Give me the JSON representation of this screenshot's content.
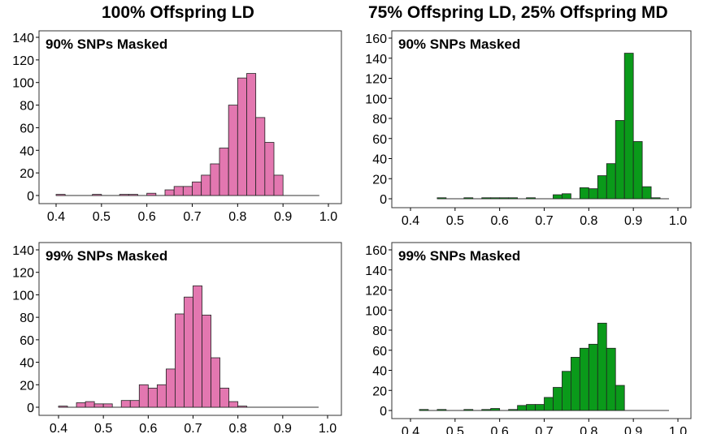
{
  "titles": {
    "left": "100% Offspring LD",
    "right": "75% Offspring LD, 25% Offspring MD"
  },
  "colors": {
    "pink_fill": "#e377b0",
    "green_fill": "#0a9a1a",
    "bar_stroke": "#222222",
    "axis": "#000000"
  },
  "chart_data": [
    {
      "type": "bar",
      "label": "90% SNPs Masked",
      "color": "pink",
      "xlim": [
        0.4,
        1.0
      ],
      "ylim": [
        0,
        140
      ],
      "x_ticks": [
        "0.4",
        "0.5",
        "0.6",
        "0.7",
        "0.8",
        "0.9",
        "1.0"
      ],
      "y_ticks": [
        "0",
        "20",
        "40",
        "60",
        "80",
        "100",
        "120",
        "140"
      ],
      "bin_width": 0.02,
      "bin_starts": [
        0.4,
        0.48,
        0.54,
        0.56,
        0.6,
        0.64,
        0.66,
        0.68,
        0.7,
        0.72,
        0.74,
        0.76,
        0.78,
        0.8,
        0.82,
        0.84,
        0.86,
        0.88
      ],
      "counts": [
        1,
        1,
        1,
        1,
        2,
        5,
        8,
        8,
        12,
        18,
        28,
        42,
        80,
        104,
        108,
        69,
        47,
        18
      ],
      "baseline_end": 0.98
    },
    {
      "type": "bar",
      "label": "90% SNPs Masked",
      "color": "green",
      "xlim": [
        0.4,
        1.0
      ],
      "ylim": [
        0,
        160
      ],
      "x_ticks": [
        "0.4",
        "0.5",
        "0.6",
        "0.7",
        "0.8",
        "0.9",
        "1.0"
      ],
      "y_ticks": [
        "0",
        "20",
        "40",
        "60",
        "80",
        "100",
        "120",
        "140",
        "160"
      ],
      "bin_width": 0.02,
      "bin_starts": [
        0.46,
        0.52,
        0.56,
        0.58,
        0.6,
        0.62,
        0.66,
        0.72,
        0.74,
        0.78,
        0.8,
        0.82,
        0.84,
        0.86,
        0.88,
        0.9,
        0.92,
        0.94
      ],
      "counts": [
        1,
        1,
        1,
        1,
        1,
        1,
        1,
        4,
        5,
        11,
        10,
        23,
        35,
        78,
        145,
        57,
        12,
        1
      ],
      "baseline_end": 0.98
    },
    {
      "type": "bar",
      "label": "99% SNPs Masked",
      "color": "pink",
      "xlim": [
        0.4,
        1.0
      ],
      "ylim": [
        0,
        140
      ],
      "x_ticks": [
        "0.4",
        "0.5",
        "0.6",
        "0.7",
        "0.8",
        "0.9",
        "1.0"
      ],
      "y_ticks": [
        "0",
        "20",
        "40",
        "60",
        "80",
        "100",
        "120",
        "140"
      ],
      "bin_width": 0.02,
      "bin_starts": [
        0.4,
        0.44,
        0.46,
        0.48,
        0.5,
        0.54,
        0.56,
        0.58,
        0.6,
        0.62,
        0.64,
        0.66,
        0.68,
        0.7,
        0.72,
        0.74,
        0.76,
        0.78,
        0.8
      ],
      "counts": [
        1,
        4,
        5,
        3,
        3,
        6,
        6,
        20,
        17,
        20,
        34,
        83,
        98,
        108,
        82,
        44,
        17,
        5,
        1
      ],
      "baseline_end": 0.98
    },
    {
      "type": "bar",
      "label": "99% SNPs Masked",
      "color": "green",
      "xlim": [
        0.4,
        1.0
      ],
      "ylim": [
        0,
        160
      ],
      "x_ticks": [
        "0.4",
        "0.5",
        "0.6",
        "0.7",
        "0.8",
        "0.9",
        "1.0"
      ],
      "y_ticks": [
        "0",
        "20",
        "40",
        "60",
        "80",
        "100",
        "120",
        "140",
        "160"
      ],
      "bin_width": 0.02,
      "bin_starts": [
        0.42,
        0.46,
        0.52,
        0.56,
        0.58,
        0.62,
        0.64,
        0.66,
        0.68,
        0.7,
        0.72,
        0.74,
        0.76,
        0.78,
        0.8,
        0.82,
        0.84,
        0.86
      ],
      "counts": [
        1,
        1,
        1,
        1,
        2,
        1,
        5,
        6,
        6,
        13,
        23,
        39,
        53,
        62,
        66,
        87,
        62,
        25
      ],
      "baseline_end": 0.98
    }
  ]
}
